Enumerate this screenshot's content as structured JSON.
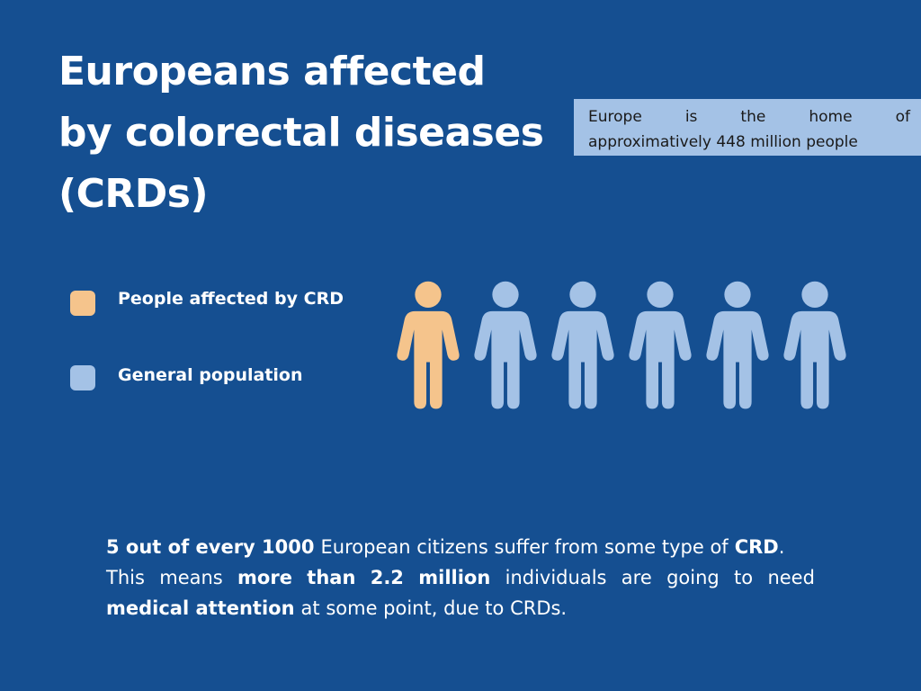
{
  "title": {
    "line1": "Europeans affected",
    "line2": "by colorectal diseases",
    "line3": "(CRDs)"
  },
  "note": {
    "words_line1": [
      "Europe",
      "is",
      "the",
      "home",
      "of"
    ],
    "line2": "approximatively 448 million people"
  },
  "legend": {
    "affected": {
      "label": "People affected by CRD",
      "color": "#f5c48c"
    },
    "general": {
      "label": "General population",
      "color": "#a4c2e6"
    }
  },
  "people": {
    "affected_count": 1,
    "total_count": 6,
    "icon": "person-icon"
  },
  "statement": {
    "line1": {
      "bold_lead": "5 out of every 1000",
      "text_mid": "European citizens suffer from some type of",
      "bold_end": "CRD",
      "punct": "."
    },
    "line2_words": [
      "This",
      "means",
      "more",
      "than",
      "2.2",
      "million",
      "individuals",
      "are",
      "going",
      "to",
      "need"
    ],
    "line2_bold_indexes": [
      2,
      3,
      4,
      5
    ],
    "line3": {
      "bold_lead": "medical attention",
      "text_rest": "at some point, due to CRDs."
    }
  }
}
